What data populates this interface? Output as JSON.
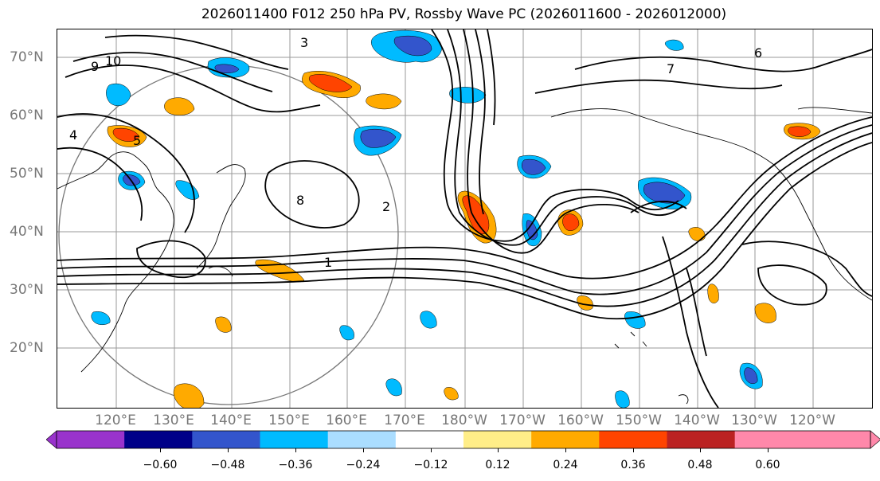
{
  "title": "2026011400 F012 250 hPa PV, Rossby Wave PC (2026011600 - 2026012000)",
  "latitude_labels": [
    "70°N",
    "60°N",
    "50°N",
    "40°N",
    "30°N",
    "20°N"
  ],
  "longitude_labels": [
    "120°E",
    "130°E",
    "140°E",
    "150°E",
    "160°E",
    "170°E",
    "180°W",
    "170°W",
    "160°W",
    "150°W",
    "140°W",
    "130°W",
    "120°W"
  ],
  "contour_labels": [
    "10",
    "9",
    "8",
    "7",
    "6",
    "5",
    "4",
    "3",
    "2",
    "1"
  ],
  "colorbar": {
    "tick_labels": [
      "−0.60",
      "−0.48",
      "−0.36",
      "−0.24",
      "−0.12",
      "0.12",
      "0.24",
      "0.36",
      "0.48",
      "0.60"
    ],
    "colors": [
      "#9933cc",
      "#000088",
      "#3355cc",
      "#00bbff",
      "#aaddff",
      "#ffffff",
      "#ffee88",
      "#ffaa00",
      "#ff4400",
      "#bb2222",
      "#ff88aa",
      "#ff88aa"
    ]
  }
}
